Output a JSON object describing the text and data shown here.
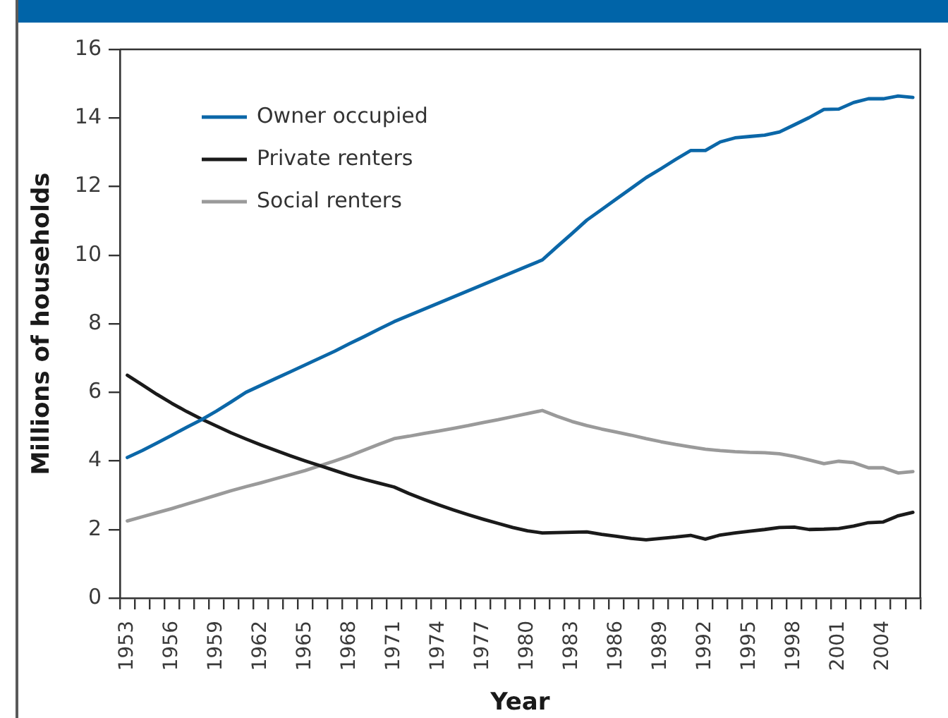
{
  "chart_data": {
    "type": "line",
    "xlabel": "Year",
    "ylabel": "Millions of households",
    "categories": [
      "1953",
      null,
      null,
      "1956",
      null,
      null,
      "1959",
      null,
      null,
      "1962",
      null,
      null,
      "1965",
      null,
      null,
      "1968",
      null,
      null,
      "1971",
      null,
      null,
      "1974",
      null,
      null,
      "1977",
      null,
      null,
      "1980",
      null,
      null,
      "1983",
      null,
      null,
      "1986",
      null,
      null,
      "1989",
      null,
      null,
      "1992",
      null,
      null,
      "1995",
      null,
      null,
      "1998",
      null,
      null,
      "2001",
      null,
      null,
      "2004",
      null,
      null
    ],
    "series": [
      {
        "name": "Owner occupied",
        "color": "#0b67a8",
        "values": [
          4.1,
          4.3,
          4.52,
          4.75,
          4.98,
          5.2,
          5.45,
          5.72,
          6.0,
          6.2,
          6.4,
          6.6,
          6.8,
          7.0,
          7.2,
          7.42,
          7.63,
          7.85,
          8.06,
          8.24,
          8.42,
          8.6,
          8.78,
          8.96,
          9.14,
          9.32,
          9.5,
          9.68,
          9.86,
          10.25,
          10.63,
          11.02,
          11.33,
          11.64,
          11.95,
          12.26,
          12.52,
          12.79,
          13.05,
          13.05,
          13.3,
          13.42,
          13.46,
          13.5,
          13.59,
          13.8,
          14.01,
          14.25,
          14.26,
          14.45,
          14.56,
          14.56,
          14.64,
          14.6
        ]
      },
      {
        "name": "Private renters",
        "color": "#1a1a1a",
        "values": [
          6.5,
          6.22,
          5.94,
          5.68,
          5.44,
          5.22,
          5.02,
          4.82,
          4.64,
          4.47,
          4.31,
          4.15,
          4.0,
          3.86,
          3.72,
          3.58,
          3.46,
          3.35,
          3.24,
          3.05,
          2.88,
          2.72,
          2.57,
          2.43,
          2.3,
          2.18,
          2.06,
          1.96,
          1.9,
          1.91,
          1.92,
          1.93,
          1.86,
          1.8,
          1.74,
          1.7,
          1.74,
          1.78,
          1.83,
          1.72,
          1.84,
          1.9,
          1.95,
          2.0,
          2.06,
          2.07,
          2.0,
          2.01,
          2.03,
          2.1,
          2.2,
          2.22,
          2.4,
          2.5
        ]
      },
      {
        "name": "Social renters",
        "color": "#9a9a9a",
        "values": [
          2.25,
          2.37,
          2.49,
          2.61,
          2.74,
          2.87,
          3.0,
          3.13,
          3.25,
          3.36,
          3.48,
          3.6,
          3.72,
          3.86,
          4.0,
          4.15,
          4.32,
          4.49,
          4.65,
          4.72,
          4.8,
          4.87,
          4.95,
          5.03,
          5.12,
          5.2,
          5.29,
          5.38,
          5.47,
          5.3,
          5.15,
          5.03,
          4.93,
          4.84,
          4.75,
          4.65,
          4.56,
          4.48,
          4.41,
          4.34,
          4.3,
          4.27,
          4.25,
          4.24,
          4.21,
          4.13,
          4.03,
          3.92,
          3.99,
          3.95,
          3.8,
          3.8,
          3.65,
          3.69
        ]
      }
    ],
    "ylim": [
      0,
      16
    ],
    "yticks": [
      0,
      2,
      4,
      6,
      8,
      10,
      12,
      14,
      16
    ],
    "legend": "top left"
  }
}
